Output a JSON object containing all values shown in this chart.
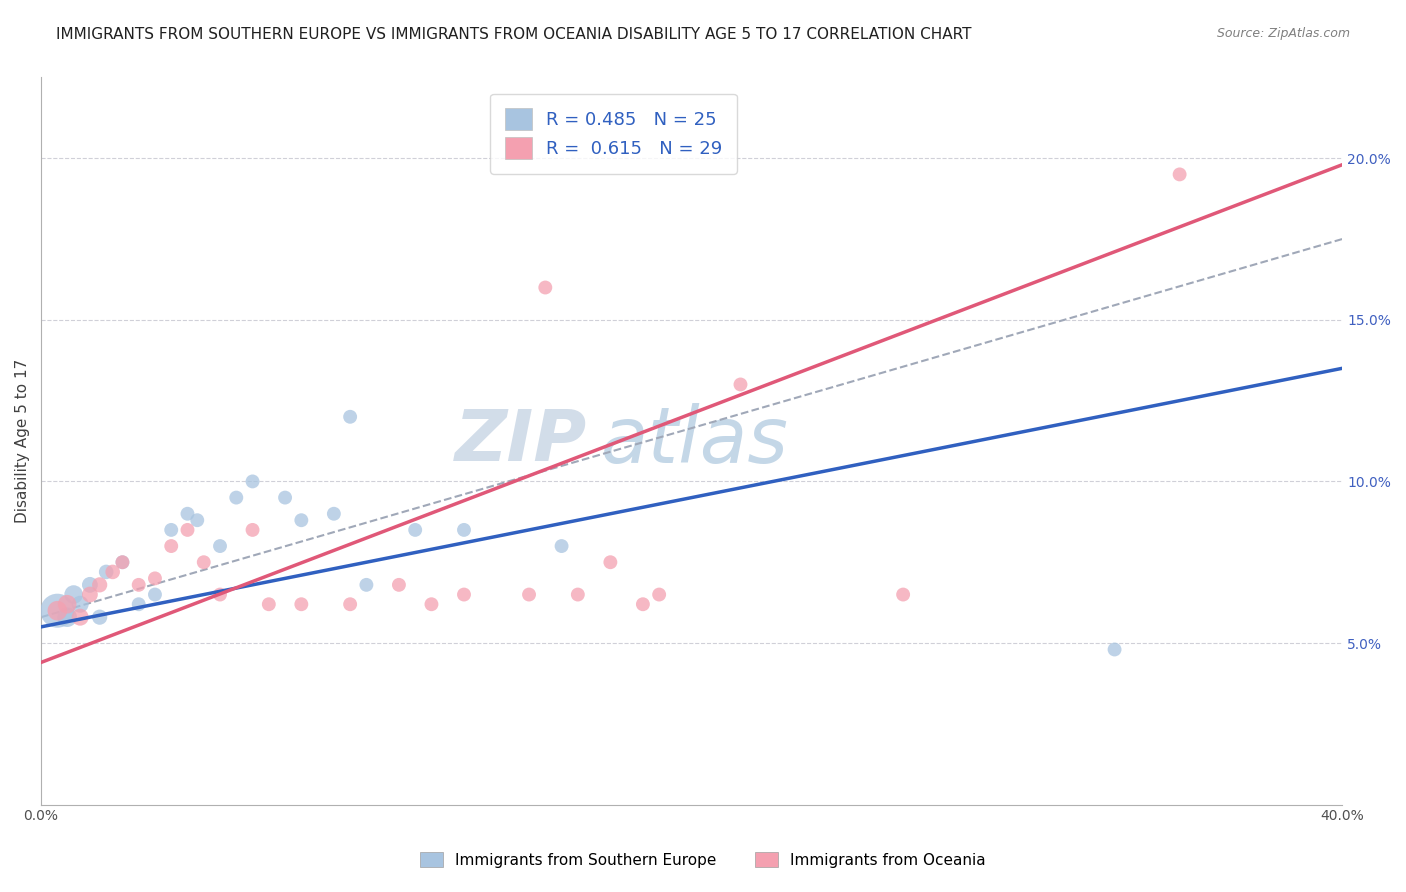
{
  "title": "IMMIGRANTS FROM SOUTHERN EUROPE VS IMMIGRANTS FROM OCEANIA DISABILITY AGE 5 TO 17 CORRELATION CHART",
  "source": "Source: ZipAtlas.com",
  "ylabel": "Disability Age 5 to 17",
  "watermark": "ZIPatlas",
  "xmin": 0.0,
  "xmax": 0.4,
  "ymin": 0.0,
  "ymax": 0.225,
  "yticks": [
    0.05,
    0.1,
    0.15,
    0.2
  ],
  "ytick_labels": [
    "5.0%",
    "10.0%",
    "15.0%",
    "20.0%"
  ],
  "xticks": [
    0.0,
    0.05,
    0.1,
    0.15,
    0.2,
    0.25,
    0.3,
    0.35,
    0.4
  ],
  "xtick_labels": [
    "0.0%",
    "",
    "",
    "",
    "",
    "",
    "",
    "",
    "40.0%"
  ],
  "legend_blue_label": "R = 0.485   N = 25",
  "legend_pink_label": "R =  0.615   N = 29",
  "blue_color": "#a8c4e0",
  "pink_color": "#f4a0b0",
  "blue_line_color": "#3060c0",
  "pink_line_color": "#e05878",
  "dashed_line_color": "#a0a8b8",
  "blue_scatter_x": [
    0.005,
    0.008,
    0.01,
    0.012,
    0.015,
    0.018,
    0.02,
    0.025,
    0.03,
    0.035,
    0.04,
    0.045,
    0.048,
    0.055,
    0.06,
    0.065,
    0.075,
    0.08,
    0.09,
    0.095,
    0.1,
    0.115,
    0.13,
    0.16,
    0.33
  ],
  "blue_scatter_y": [
    0.06,
    0.058,
    0.065,
    0.062,
    0.068,
    0.058,
    0.072,
    0.075,
    0.062,
    0.065,
    0.085,
    0.09,
    0.088,
    0.08,
    0.095,
    0.1,
    0.095,
    0.088,
    0.09,
    0.12,
    0.068,
    0.085,
    0.085,
    0.08,
    0.048
  ],
  "blue_scatter_sizes": [
    600,
    200,
    180,
    150,
    130,
    120,
    110,
    100,
    100,
    100,
    100,
    100,
    100,
    100,
    100,
    100,
    100,
    100,
    100,
    100,
    100,
    100,
    100,
    100,
    100
  ],
  "pink_scatter_x": [
    0.005,
    0.008,
    0.012,
    0.015,
    0.018,
    0.022,
    0.025,
    0.03,
    0.035,
    0.04,
    0.045,
    0.05,
    0.055,
    0.065,
    0.07,
    0.08,
    0.095,
    0.11,
    0.12,
    0.13,
    0.15,
    0.155,
    0.165,
    0.175,
    0.185,
    0.19,
    0.215,
    0.265,
    0.35
  ],
  "pink_scatter_y": [
    0.06,
    0.062,
    0.058,
    0.065,
    0.068,
    0.072,
    0.075,
    0.068,
    0.07,
    0.08,
    0.085,
    0.075,
    0.065,
    0.085,
    0.062,
    0.062,
    0.062,
    0.068,
    0.062,
    0.065,
    0.065,
    0.16,
    0.065,
    0.075,
    0.062,
    0.065,
    0.13,
    0.065,
    0.195
  ],
  "pink_scatter_sizes": [
    200,
    180,
    150,
    130,
    120,
    110,
    100,
    100,
    100,
    100,
    100,
    100,
    100,
    100,
    100,
    100,
    100,
    100,
    100,
    100,
    100,
    100,
    100,
    100,
    100,
    100,
    100,
    100,
    100
  ],
  "blue_line_x": [
    0.0,
    0.4
  ],
  "blue_line_y": [
    0.055,
    0.135
  ],
  "pink_line_x": [
    0.0,
    0.4
  ],
  "pink_line_y": [
    0.044,
    0.198
  ],
  "dashed_line_x": [
    0.0,
    0.4
  ],
  "dashed_line_y": [
    0.058,
    0.175
  ],
  "grid_color": "#d0d0d8",
  "background_color": "#ffffff",
  "title_fontsize": 11,
  "axis_label_fontsize": 11,
  "tick_fontsize": 10,
  "watermark_color": "#ccd8e8",
  "watermark_fontsize": 52
}
